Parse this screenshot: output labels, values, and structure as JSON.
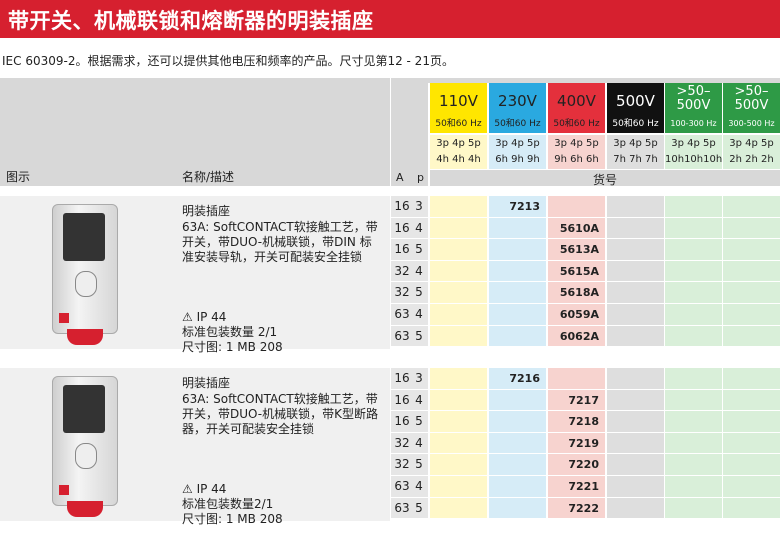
{
  "title": "带开关、机械联锁和熔断器的明装插座",
  "subtitle": "IEC 60309-2。根据需求，还可以提供其他电压和频率的产品。尺寸见第12 - 21页。",
  "header": {
    "col_image": "图示",
    "col_name": "名称/描述",
    "col_A": "A",
    "col_p": "p",
    "col_partno": "货号"
  },
  "voltages": [
    {
      "main": "110V",
      "freq": "50和60 Hz",
      "pins": "3p 4p 5p",
      "hours": "4h 4h 4h",
      "color": "#ffe600",
      "light": "#fff8c8",
      "dark": false
    },
    {
      "main": "230V",
      "freq": "50和60 Hz",
      "pins": "3p 4p 5p",
      "hours": "6h 9h 9h",
      "color": "#2aa9e0",
      "light": "#d6ecf7",
      "dark": false
    },
    {
      "main": "400V",
      "freq": "50和60 Hz",
      "pins": "3p 4p 5p",
      "hours": "9h 6h 6h",
      "color": "#e4303c",
      "light": "#f7d3cf",
      "dark": false
    },
    {
      "main": "500V",
      "freq": "50和60 Hz",
      "pins": "3p 4p 5p",
      "hours": "7h 7h 7h",
      "color": "#111111",
      "light": "#dedede",
      "dark": true
    },
    {
      "main": ">50–500V",
      "freq": "100-300 Hz",
      "pins": "3p 4p 5p",
      "hours": "10h10h10h",
      "color": "#2e9a46",
      "light": "#d9efd9",
      "dark": true
    },
    {
      "main": ">50–500V",
      "freq": "300-500 Hz",
      "pins": "3p 4p 5p",
      "hours": "2h 2h 2h",
      "color": "#2e9a46",
      "light": "#d9efd9",
      "dark": true
    }
  ],
  "products": [
    {
      "name": "明装插座",
      "desc": "63A: SoftCONTACT软接触工艺，带开关，带DUO-机械联锁，带DIN 标准安装导轨，开关可配装安全挂锁",
      "ip": "IP 44",
      "pack": "标准包装数量 2/1",
      "dim": "尺寸图: 1 MB 208",
      "rows": [
        {
          "A": "16",
          "p": "3",
          "col": 1,
          "partno": "7213"
        },
        {
          "A": "16",
          "p": "4",
          "col": 2,
          "partno": "5610A"
        },
        {
          "A": "16",
          "p": "5",
          "col": 2,
          "partno": "5613A"
        },
        {
          "A": "32",
          "p": "4",
          "col": 2,
          "partno": "5615A"
        },
        {
          "A": "32",
          "p": "5",
          "col": 2,
          "partno": "5618A"
        },
        {
          "A": "63",
          "p": "4",
          "col": 2,
          "partno": "6059A"
        },
        {
          "A": "63",
          "p": "5",
          "col": 2,
          "partno": "6062A"
        }
      ]
    },
    {
      "name": "明装插座",
      "desc": "63A: SoftCONTACT软接触工艺，带开关，带DUO-机械联锁，带K型断路器，开关可配装安全挂锁",
      "ip": "IP 44",
      "pack": "标准包装数量2/1",
      "dim": "尺寸图: 1 MB 208",
      "rows": [
        {
          "A": "16",
          "p": "3",
          "col": 1,
          "partno": "7216"
        },
        {
          "A": "16",
          "p": "4",
          "col": 2,
          "partno": "7217"
        },
        {
          "A": "16",
          "p": "5",
          "col": 2,
          "partno": "7218"
        },
        {
          "A": "32",
          "p": "4",
          "col": 2,
          "partno": "7219"
        },
        {
          "A": "32",
          "p": "5",
          "col": 2,
          "partno": "7220"
        },
        {
          "A": "63",
          "p": "4",
          "col": 2,
          "partno": "7221"
        },
        {
          "A": "63",
          "p": "5",
          "col": 2,
          "partno": "7222"
        }
      ]
    }
  ]
}
